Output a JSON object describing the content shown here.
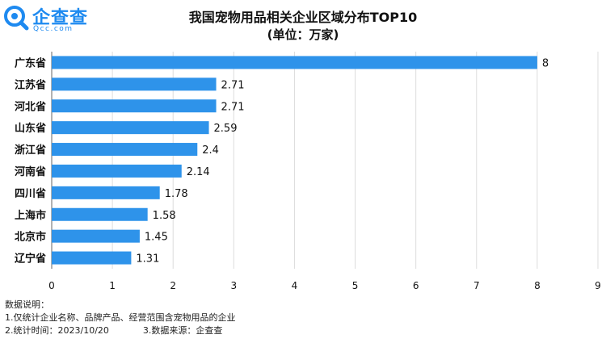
{
  "brand": {
    "name": "企查查",
    "sub": "Qcc.com",
    "color": "#1e8af0"
  },
  "chart_data": {
    "type": "bar",
    "orientation": "horizontal",
    "title": "我国宠物用品相关企业区域分布TOP10",
    "subtitle": "(单位：万家)",
    "categories": [
      "广东省",
      "江苏省",
      "河北省",
      "山东省",
      "浙江省",
      "河南省",
      "四川省",
      "上海市",
      "北京市",
      "辽宁省"
    ],
    "values": [
      8,
      2.71,
      2.71,
      2.59,
      2.4,
      2.14,
      1.78,
      1.58,
      1.45,
      1.31
    ],
    "value_labels": [
      "8",
      "2.71",
      "2.71",
      "2.59",
      "2.4",
      "2.14",
      "1.78",
      "1.58",
      "1.45",
      "1.31"
    ],
    "xlim": [
      0,
      9
    ],
    "xticks": [
      0,
      1,
      2,
      3,
      4,
      5,
      6,
      7,
      8,
      9
    ],
    "grid": true,
    "bar_color": "#2e93ea"
  },
  "notes": {
    "heading": "数据说明：",
    "line1": "1.仅统计企业名称、品牌产品、经营范围含宠物用品的企业",
    "line2a": "2.统计时间：2023/10/20",
    "line2b": "3.数据来源：企查查"
  }
}
